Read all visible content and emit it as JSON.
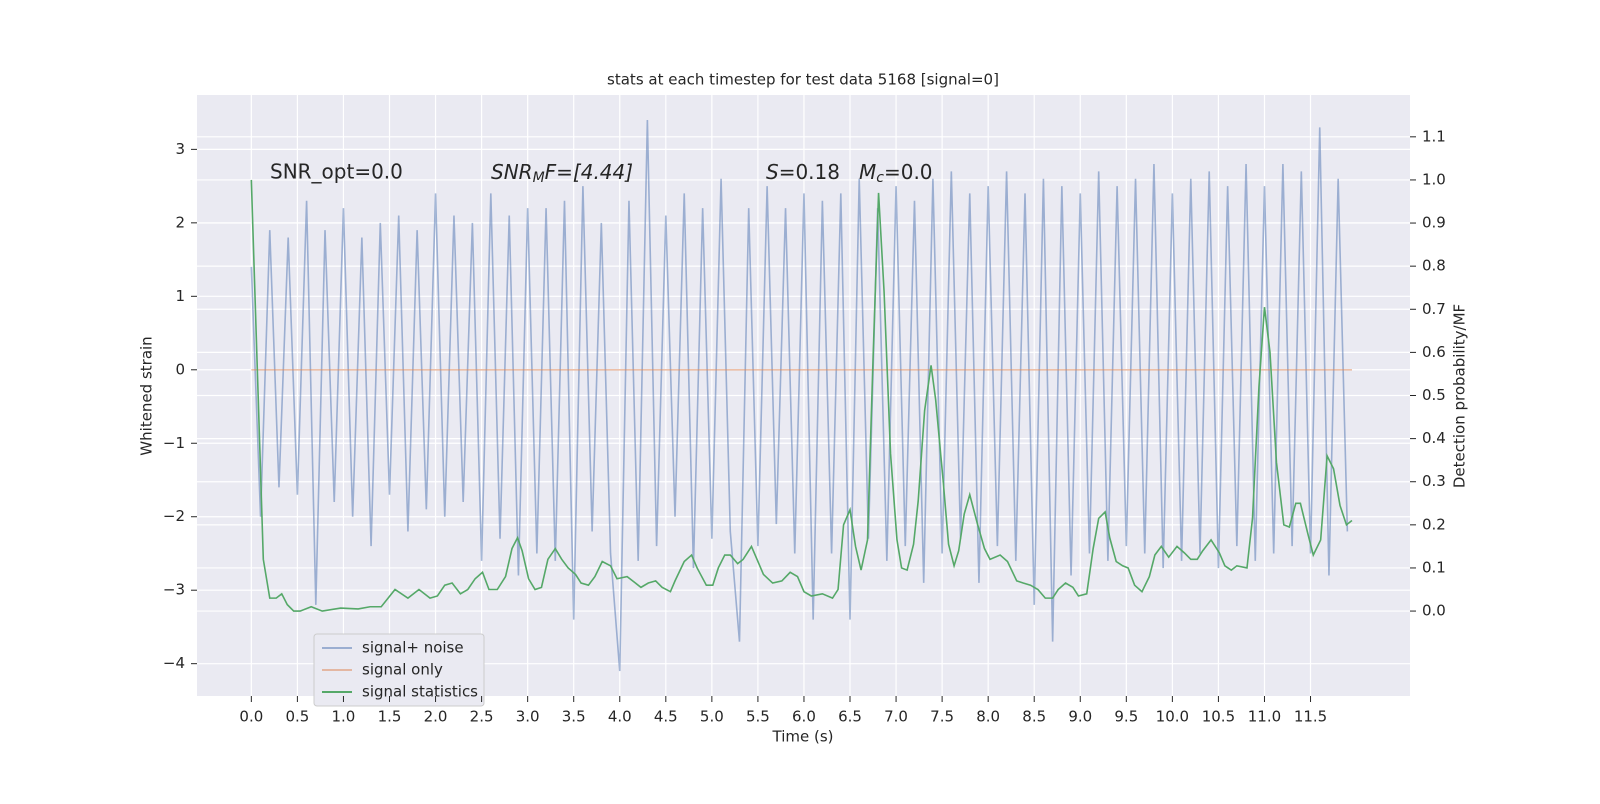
{
  "chart_data": {
    "type": "line",
    "title": "stats at each timestep for test data 5168 [signal=0]",
    "xlabel": "Time (s)",
    "ylabel": "Whitened strain",
    "y2label": "Detection probability/MF",
    "annotations": {
      "snr_opt": "SNR_opt=0.0",
      "snr_mf": [
        "SNR",
        "M",
        "F=[4.44]"
      ],
      "stats": [
        "S",
        "=0.18",
        "M",
        "c",
        "=0.0"
      ]
    },
    "xlim": [
      -0.59,
      12.58
    ],
    "ylim": [
      -4.44,
      3.74
    ],
    "y2lim": [
      -0.197,
      1.197
    ],
    "xticks": [
      {
        "value": 0,
        "label": "0.0"
      },
      0.5,
      {
        "value": 1,
        "label": "1.0"
      },
      1.5,
      {
        "value": 2,
        "label": "2.0"
      },
      2.5,
      {
        "value": 3,
        "label": "3.0"
      },
      3.5,
      {
        "value": 4,
        "label": "4.0"
      },
      4.5,
      {
        "value": 5,
        "label": "5.0"
      },
      5.5,
      {
        "value": 6,
        "label": "6.0"
      },
      6.5,
      {
        "value": 7,
        "label": "7.0"
      },
      7.5,
      {
        "value": 8,
        "label": "8.0"
      },
      8.5,
      {
        "value": 9,
        "label": "9.0"
      },
      9.5,
      {
        "value": 10,
        "label": "10.0"
      },
      10.5,
      {
        "value": 11,
        "label": "11.0"
      },
      11.5
    ],
    "yticks": [
      {
        "value": -4,
        "label": "−4"
      },
      {
        "value": -3,
        "label": "−3"
      },
      {
        "value": -2,
        "label": "−2"
      },
      {
        "value": -1,
        "label": "−1"
      },
      0,
      1,
      2,
      3
    ],
    "y2ticks": [
      {
        "value": 0,
        "label": "0.0"
      },
      0.1,
      0.2,
      0.3,
      0.4,
      0.5,
      0.6,
      0.7,
      0.8,
      0.9,
      {
        "value": 1,
        "label": "1.0"
      },
      1.1
    ],
    "grid": true,
    "legend_loc": "lower left",
    "series": [
      {
        "name": "signal+ noise",
        "color": "#4c72b0",
        "alpha": 0.5,
        "x": [
          0.0,
          0.1,
          0.2,
          0.3,
          0.4,
          0.5,
          0.6,
          0.7,
          0.8,
          0.9,
          1.0,
          1.1,
          1.2,
          1.3,
          1.4,
          1.5,
          1.6,
          1.7,
          1.8,
          1.9,
          2.0,
          2.1,
          2.2,
          2.3,
          2.4,
          2.5,
          2.6,
          2.7,
          2.8,
          2.9,
          3.0,
          3.1,
          3.2,
          3.3,
          3.4,
          3.5,
          3.6,
          3.7,
          3.8,
          3.9,
          4.0,
          4.1,
          4.2,
          4.3,
          4.4,
          4.5,
          4.6,
          4.7,
          4.8,
          4.9,
          5.0,
          5.1,
          5.2,
          5.3,
          5.4,
          5.5,
          5.6,
          5.7,
          5.8,
          5.9,
          6.0,
          6.1,
          6.2,
          6.3,
          6.4,
          6.5,
          6.6,
          6.7,
          6.8,
          6.9,
          7.0,
          7.1,
          7.2,
          7.3,
          7.4,
          7.5,
          7.6,
          7.7,
          7.8,
          7.9,
          8.0,
          8.1,
          8.2,
          8.3,
          8.4,
          8.5,
          8.6,
          8.7,
          8.8,
          8.9,
          9.0,
          9.1,
          9.2,
          9.3,
          9.4,
          9.5,
          9.6,
          9.7,
          9.8,
          9.9,
          10.0,
          10.1,
          10.2,
          10.3,
          10.4,
          10.5,
          10.6,
          10.7,
          10.8,
          10.9,
          11.0,
          11.1,
          11.2,
          11.3,
          11.4,
          11.5,
          11.6,
          11.7,
          11.8,
          11.9
        ],
        "values": [
          1.4,
          -2.0,
          1.9,
          -1.6,
          1.8,
          -1.7,
          2.3,
          -3.2,
          1.9,
          -1.8,
          2.2,
          -2.0,
          1.8,
          -2.4,
          2.0,
          -1.7,
          2.1,
          -2.2,
          1.9,
          -1.9,
          2.4,
          -2.0,
          2.1,
          -1.8,
          2.0,
          -2.6,
          2.4,
          -2.3,
          2.1,
          -2.8,
          2.2,
          -2.5,
          2.2,
          -2.6,
          2.3,
          -3.4,
          2.5,
          -2.2,
          2.0,
          -2.5,
          -4.1,
          2.3,
          -2.6,
          3.4,
          -2.4,
          2.1,
          -2.0,
          2.4,
          -2.7,
          2.2,
          -2.3,
          2.6,
          -2.2,
          -3.7,
          2.2,
          -2.4,
          2.5,
          -2.1,
          2.2,
          -2.5,
          2.4,
          -3.4,
          2.3,
          -2.5,
          2.4,
          -3.4,
          2.6,
          -2.3,
          2.2,
          -2.6,
          2.5,
          -2.4,
          2.3,
          -2.9,
          2.6,
          -2.5,
          2.7,
          -2.3,
          2.4,
          -2.9,
          2.5,
          -2.4,
          2.7,
          -2.6,
          2.4,
          -3.2,
          2.6,
          -3.7,
          2.5,
          -2.8,
          2.4,
          -2.5,
          2.7,
          -2.6,
          2.5,
          -2.4,
          2.6,
          -2.5,
          2.8,
          -2.7,
          2.4,
          -2.6,
          2.6,
          -2.5,
          2.7,
          -2.7,
          2.5,
          -2.4,
          2.8,
          -2.6,
          2.5,
          -2.5,
          2.8,
          -2.4,
          2.7,
          -2.5,
          3.3,
          -2.8,
          2.6,
          -2.2
        ]
      },
      {
        "name": "signal only",
        "color": "#dd8452",
        "alpha": 0.5,
        "x": [
          0.0,
          11.95
        ],
        "values": [
          0,
          0
        ]
      },
      {
        "name": "signal statistics",
        "color": "#55a868",
        "alpha": 1,
        "axis": "y2",
        "x": [
          0,
          0.13,
          0.2,
          0.27,
          0.33,
          0.39,
          0.46,
          0.53,
          0.65,
          0.77,
          0.97,
          1.16,
          1.29,
          1.41,
          1.56,
          1.7,
          1.82,
          1.94,
          2.02,
          2.1,
          2.18,
          2.27,
          2.35,
          2.43,
          2.51,
          2.58,
          2.67,
          2.76,
          2.83,
          2.89,
          2.94,
          3.01,
          3.08,
          3.15,
          3.22,
          3.3,
          3.37,
          3.44,
          3.52,
          3.58,
          3.66,
          3.73,
          3.81,
          3.9,
          3.97,
          4.08,
          4.17,
          4.23,
          4.31,
          4.39,
          4.46,
          4.55,
          4.6,
          4.7,
          4.78,
          4.84,
          4.94,
          5.01,
          5.07,
          5.14,
          5.2,
          5.28,
          5.34,
          5.43,
          5.49,
          5.56,
          5.66,
          5.76,
          5.85,
          5.93,
          6.0,
          6.08,
          6.2,
          6.31,
          6.37,
          6.43,
          6.5,
          6.56,
          6.62,
          6.69,
          6.75,
          6.81,
          6.87,
          6.94,
          7.01,
          7.06,
          7.12,
          7.19,
          7.24,
          7.31,
          7.38,
          7.43,
          7.51,
          7.57,
          7.63,
          7.68,
          7.74,
          7.8,
          7.88,
          7.96,
          8.02,
          8.13,
          8.21,
          8.31,
          8.38,
          8.46,
          8.54,
          8.62,
          8.7,
          8.76,
          8.84,
          8.92,
          8.98,
          9.07,
          9.14,
          9.2,
          9.27,
          9.32,
          9.39,
          9.46,
          9.52,
          9.59,
          9.67,
          9.75,
          9.81,
          9.88,
          9.96,
          10.05,
          10.13,
          10.2,
          10.27,
          10.33,
          10.42,
          10.51,
          10.57,
          10.64,
          10.7,
          10.81,
          10.87,
          10.94,
          11.0,
          11.06,
          11.13,
          11.21,
          11.27,
          11.34,
          11.39,
          11.47,
          11.53,
          11.61,
          11.68,
          11.75,
          11.82,
          11.89,
          11.95
        ],
        "values": [
          1.0,
          0.12,
          0.03,
          0.03,
          0.04,
          0.015,
          0.0,
          0.0,
          0.01,
          0.0,
          0.007,
          0.005,
          0.01,
          0.01,
          0.05,
          0.03,
          0.05,
          0.03,
          0.035,
          0.06,
          0.065,
          0.04,
          0.05,
          0.075,
          0.09,
          0.05,
          0.05,
          0.08,
          0.145,
          0.17,
          0.14,
          0.075,
          0.05,
          0.055,
          0.12,
          0.145,
          0.12,
          0.1,
          0.085,
          0.065,
          0.06,
          0.08,
          0.115,
          0.105,
          0.075,
          0.08,
          0.065,
          0.055,
          0.065,
          0.07,
          0.055,
          0.045,
          0.07,
          0.115,
          0.13,
          0.1,
          0.06,
          0.06,
          0.1,
          0.13,
          0.13,
          0.11,
          0.12,
          0.15,
          0.12,
          0.085,
          0.065,
          0.07,
          0.09,
          0.08,
          0.045,
          0.035,
          0.04,
          0.03,
          0.05,
          0.2,
          0.235,
          0.15,
          0.095,
          0.165,
          0.585,
          0.97,
          0.74,
          0.365,
          0.165,
          0.1,
          0.095,
          0.155,
          0.255,
          0.465,
          0.57,
          0.49,
          0.305,
          0.155,
          0.105,
          0.14,
          0.225,
          0.27,
          0.205,
          0.145,
          0.12,
          0.13,
          0.115,
          0.07,
          0.065,
          0.06,
          0.05,
          0.03,
          0.03,
          0.05,
          0.065,
          0.055,
          0.035,
          0.04,
          0.145,
          0.215,
          0.23,
          0.17,
          0.115,
          0.105,
          0.1,
          0.06,
          0.045,
          0.08,
          0.13,
          0.15,
          0.125,
          0.15,
          0.135,
          0.12,
          0.12,
          0.14,
          0.165,
          0.135,
          0.105,
          0.095,
          0.105,
          0.1,
          0.215,
          0.52,
          0.705,
          0.6,
          0.345,
          0.2,
          0.195,
          0.25,
          0.25,
          0.18,
          0.13,
          0.165,
          0.36,
          0.33,
          0.245,
          0.2,
          0.21
        ]
      }
    ]
  }
}
